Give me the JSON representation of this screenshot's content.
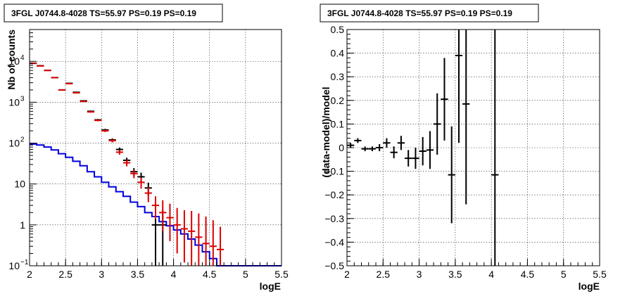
{
  "chart_data": [
    {
      "type": "histogram",
      "title": "3FGL J0744.8-4028 TS=55.97 PS=0.19 PS=0.19",
      "xlabel": "logE",
      "ylabel": "Nb of counts",
      "xlim": [
        2,
        5.5
      ],
      "ylim": [
        0.1,
        60000
      ],
      "yscale": "log",
      "grid": true,
      "x_tick_labels": [
        "2",
        "2.5",
        "3",
        "3.5",
        "4",
        "4.5",
        "5",
        "5.5"
      ],
      "y_tick_labels": [
        {
          "v": 0.1,
          "base": "10",
          "exp": "−1"
        },
        {
          "v": 1,
          "base": "1",
          "exp": ""
        },
        {
          "v": 10,
          "base": "10",
          "exp": ""
        },
        {
          "v": 100,
          "base": "10",
          "exp": "2"
        },
        {
          "v": 1000,
          "base": "10",
          "exp": "3"
        },
        {
          "v": 10000,
          "base": "10",
          "exp": "4"
        }
      ],
      "bin_width": 0.1,
      "series": [
        {
          "color": "#000000",
          "style": "errorbar",
          "points": [
            {
              "x": 2.05,
              "y": 9000,
              "lo": 8900,
              "hi": 9100
            },
            {
              "x": 2.15,
              "y": 7800,
              "lo": 7700,
              "hi": 7900
            },
            {
              "x": 2.25,
              "y": 6000,
              "lo": 5900,
              "hi": 6100
            },
            {
              "x": 2.35,
              "y": 4000,
              "lo": 3940,
              "hi": 4060
            },
            {
              "x": 2.45,
              "y": 2000,
              "lo": 1960,
              "hi": 2040
            },
            {
              "x": 2.55,
              "y": 2900,
              "lo": 2850,
              "hi": 2950
            },
            {
              "x": 2.65,
              "y": 1750,
              "lo": 1710,
              "hi": 1790
            },
            {
              "x": 2.75,
              "y": 1080,
              "lo": 1050,
              "hi": 1110
            },
            {
              "x": 2.85,
              "y": 600,
              "lo": 576,
              "hi": 624
            },
            {
              "x": 2.95,
              "y": 370,
              "lo": 351,
              "hi": 389
            },
            {
              "x": 3.05,
              "y": 210,
              "lo": 196,
              "hi": 224
            },
            {
              "x": 3.15,
              "y": 120,
              "lo": 109,
              "hi": 131
            },
            {
              "x": 3.25,
              "y": 70,
              "lo": 62,
              "hi": 78
            },
            {
              "x": 3.35,
              "y": 38,
              "lo": 32,
              "hi": 44
            },
            {
              "x": 3.45,
              "y": 20,
              "lo": 15.5,
              "hi": 24.5
            },
            {
              "x": 3.55,
              "y": 15,
              "lo": 11,
              "hi": 19
            },
            {
              "x": 3.65,
              "y": 8,
              "lo": 5.2,
              "hi": 10.8
            },
            {
              "x": 3.75,
              "y": 1,
              "lo": 0.1,
              "hi": 2.3
            },
            {
              "x": 3.85,
              "y": 1,
              "lo": 0.1,
              "hi": 2.3
            }
          ]
        },
        {
          "color": "#dd0000",
          "style": "errorbar",
          "points": [
            {
              "x": 2.05,
              "y": 8900,
              "lo": 8800,
              "hi": 9000
            },
            {
              "x": 2.15,
              "y": 7700,
              "lo": 7600,
              "hi": 7800
            },
            {
              "x": 2.25,
              "y": 6000,
              "lo": 5920,
              "hi": 6080
            },
            {
              "x": 2.35,
              "y": 4000,
              "lo": 3940,
              "hi": 4060
            },
            {
              "x": 2.45,
              "y": 2000,
              "lo": 1960,
              "hi": 2040
            },
            {
              "x": 2.55,
              "y": 2850,
              "lo": 2800,
              "hi": 2900
            },
            {
              "x": 2.65,
              "y": 1700,
              "lo": 1660,
              "hi": 1740
            },
            {
              "x": 2.75,
              "y": 1050,
              "lo": 1020,
              "hi": 1080
            },
            {
              "x": 2.85,
              "y": 580,
              "lo": 557,
              "hi": 603
            },
            {
              "x": 2.95,
              "y": 360,
              "lo": 342,
              "hi": 378
            },
            {
              "x": 3.05,
              "y": 200,
              "lo": 186,
              "hi": 214
            },
            {
              "x": 3.15,
              "y": 115,
              "lo": 104,
              "hi": 126
            },
            {
              "x": 3.25,
              "y": 60,
              "lo": 52,
              "hi": 68
            },
            {
              "x": 3.35,
              "y": 33,
              "lo": 27,
              "hi": 39
            },
            {
              "x": 3.45,
              "y": 18,
              "lo": 13.8,
              "hi": 22.2
            },
            {
              "x": 3.55,
              "y": 11,
              "lo": 7.7,
              "hi": 14.3
            },
            {
              "x": 3.65,
              "y": 6,
              "lo": 3.6,
              "hi": 8.4
            },
            {
              "x": 3.75,
              "y": 3,
              "lo": 1.4,
              "hi": 5
            },
            {
              "x": 3.85,
              "y": 2,
              "lo": 0.7,
              "hi": 4
            },
            {
              "x": 3.95,
              "y": 1.5,
              "lo": 0.4,
              "hi": 3.3
            },
            {
              "x": 4.05,
              "y": 1,
              "lo": 0.2,
              "hi": 2.6
            },
            {
              "x": 4.15,
              "y": 0.8,
              "lo": 0.12,
              "hi": 2.3
            },
            {
              "x": 4.25,
              "y": 0.7,
              "lo": 0.1,
              "hi": 2.2
            },
            {
              "x": 4.35,
              "y": 0.5,
              "lo": 0.1,
              "hi": 1.9
            },
            {
              "x": 4.45,
              "y": 0.35,
              "lo": 0.1,
              "hi": 1.6
            },
            {
              "x": 4.55,
              "y": 0.3,
              "lo": 0.1,
              "hi": 1.3
            },
            {
              "x": 4.65,
              "y": 0.25,
              "lo": 0.1,
              "hi": 0.9
            }
          ]
        },
        {
          "color": "#0000dd",
          "style": "step",
          "bins_start": 2.0,
          "values": [
            95,
            90,
            80,
            68,
            55,
            45,
            36,
            28,
            20,
            15,
            11,
            8.5,
            6.5,
            5,
            3.6,
            2.8,
            2,
            1.6,
            1.2,
            0.95,
            0.75,
            0.6,
            0.45,
            0.32,
            0.22,
            0.15,
            0.1
          ]
        }
      ]
    },
    {
      "type": "scatter",
      "title": "3FGL J0744.8-4028 TS=55.97 PS=0.19 PS=0.19",
      "xlabel": "logE",
      "ylabel": "(data-model)/model",
      "xlim": [
        2,
        5.5
      ],
      "ylim": [
        -0.5,
        0.5
      ],
      "grid": true,
      "x_tick_labels": [
        "2",
        "2.5",
        "3",
        "3.5",
        "4",
        "4.5",
        "5",
        "5.5"
      ],
      "y_tick_labels": [
        "−0.5",
        "−0.4",
        "−0.3",
        "−0.2",
        "−0.1",
        "0",
        "0.1",
        "0.2",
        "0.3",
        "0.4",
        "0.5"
      ],
      "x_half_width": 0.05,
      "series": [
        {
          "color": "#000000",
          "points": [
            {
              "x": 2.05,
              "y": 0.01,
              "lo": 0.0,
              "hi": 0.02
            },
            {
              "x": 2.15,
              "y": 0.03,
              "lo": 0.02,
              "hi": 0.04
            },
            {
              "x": 2.25,
              "y": -0.005,
              "lo": -0.015,
              "hi": 0.005
            },
            {
              "x": 2.35,
              "y": -0.005,
              "lo": -0.015,
              "hi": 0.005
            },
            {
              "x": 2.45,
              "y": 0.0,
              "lo": -0.015,
              "hi": 0.015
            },
            {
              "x": 2.55,
              "y": 0.02,
              "lo": 0.0,
              "hi": 0.04
            },
            {
              "x": 2.65,
              "y": -0.02,
              "lo": -0.045,
              "hi": 0.005
            },
            {
              "x": 2.75,
              "y": 0.02,
              "lo": -0.01,
              "hi": 0.05
            },
            {
              "x": 2.85,
              "y": -0.045,
              "lo": -0.08,
              "hi": -0.01
            },
            {
              "x": 2.95,
              "y": -0.045,
              "lo": -0.09,
              "hi": 0.0
            },
            {
              "x": 3.05,
              "y": -0.015,
              "lo": -0.075,
              "hi": 0.045
            },
            {
              "x": 3.15,
              "y": -0.01,
              "lo": -0.09,
              "hi": 0.07
            },
            {
              "x": 3.25,
              "y": 0.1,
              "lo": -0.03,
              "hi": 0.23
            },
            {
              "x": 3.35,
              "y": 0.205,
              "lo": 0.03,
              "hi": 0.38
            },
            {
              "x": 3.45,
              "y": -0.115,
              "lo": -0.32,
              "hi": 0.09
            },
            {
              "x": 3.55,
              "y": 0.39,
              "lo": 0.02,
              "hi": 0.5
            },
            {
              "x": 3.65,
              "y": 0.185,
              "lo": -0.24,
              "hi": 0.5
            },
            {
              "x": 4.05,
              "y": -0.115,
              "lo": -0.5,
              "hi": 0.5
            }
          ]
        }
      ]
    }
  ]
}
